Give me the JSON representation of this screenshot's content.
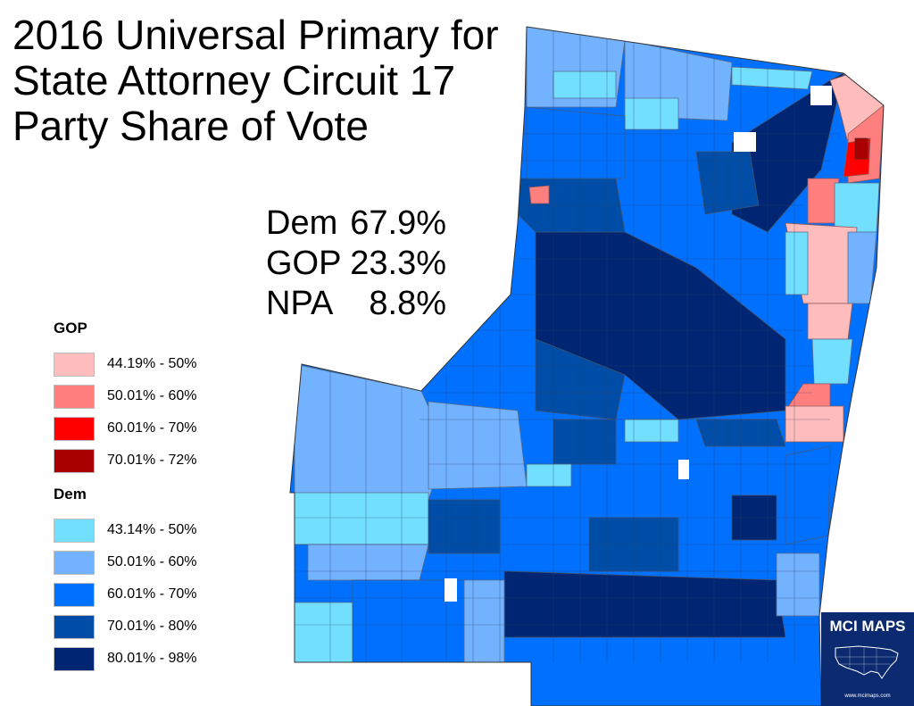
{
  "title": "2016 Universal Primary for\nState Attorney Circuit 17\nParty Share of Vote",
  "results": [
    {
      "party": "Dem",
      "share": "67.9%"
    },
    {
      "party": "GOP",
      "share": "23.3%"
    },
    {
      "party": "NPA",
      "share": "8.8%"
    }
  ],
  "legend": {
    "gop": {
      "heading": "GOP",
      "items": [
        {
          "label": "44.19% - 50%",
          "color": "#ffbcbc"
        },
        {
          "label": "50.01% - 60%",
          "color": "#ff7f7f"
        },
        {
          "label": "60.01% - 70%",
          "color": "#ff0000"
        },
        {
          "label": "70.01% - 72%",
          "color": "#a80000"
        }
      ]
    },
    "dem": {
      "heading": "Dem",
      "items": [
        {
          "label": "43.14% - 50%",
          "color": "#73dfff"
        },
        {
          "label": "50.01% - 60%",
          "color": "#73b2ff"
        },
        {
          "label": "60.01% - 70%",
          "color": "#0070ff"
        },
        {
          "label": "70.01% - 80%",
          "color": "#004da8"
        },
        {
          "label": "80.01% - 98%",
          "color": "#002673"
        }
      ]
    }
  },
  "logo": {
    "text": "MCI MAPS",
    "url": "www.mcimaps.com",
    "icon": "usa-map-icon"
  }
}
